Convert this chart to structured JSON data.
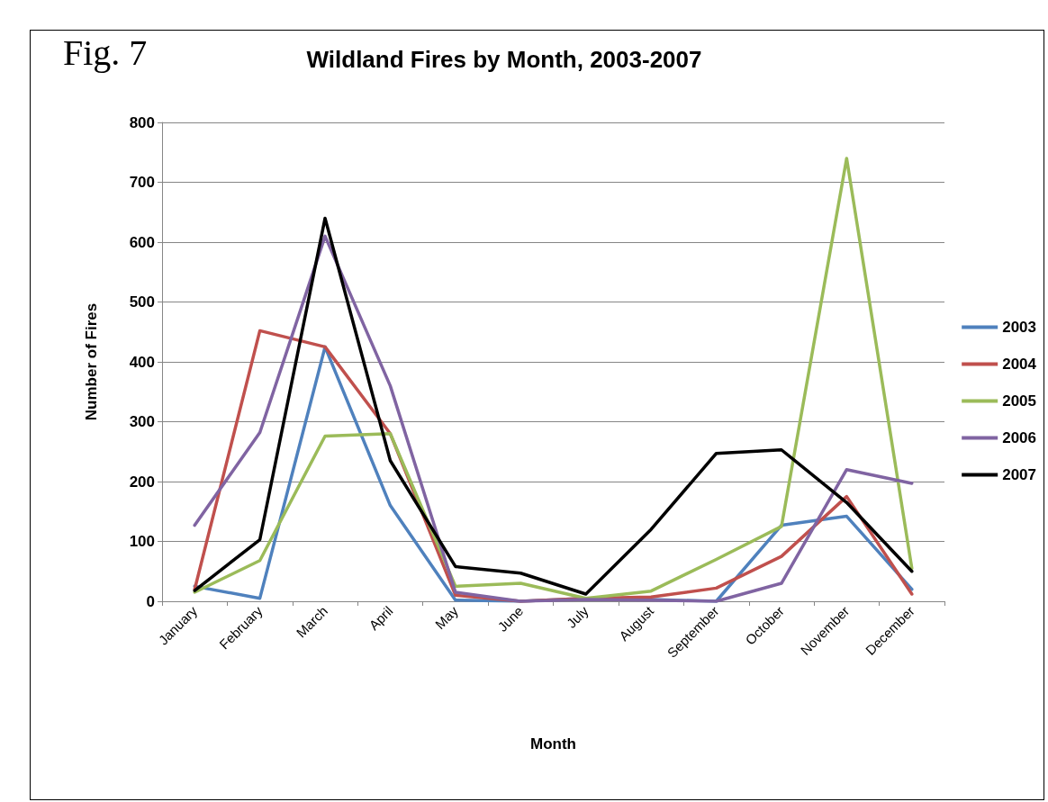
{
  "chart_data": {
    "type": "line",
    "title": "Wildland Fires by Month, 2003-2007",
    "xlabel": "Month",
    "ylabel": "Number of Fires",
    "annotations": [
      "Fig. 7"
    ],
    "categories": [
      "January",
      "February",
      "March",
      "April",
      "May",
      "June",
      "July",
      "August",
      "September",
      "October",
      "November",
      "December"
    ],
    "series": [
      {
        "name": "2003",
        "color": "#4f81bd",
        "values": [
          25,
          5,
          425,
          160,
          2,
          0,
          5,
          3,
          0,
          127,
          142,
          20
        ]
      },
      {
        "name": "2004",
        "color": "#c0504d",
        "values": [
          20,
          452,
          425,
          280,
          10,
          0,
          5,
          7,
          22,
          75,
          175,
          12
        ]
      },
      {
        "name": "2005",
        "color": "#9bbb59",
        "values": [
          15,
          68,
          276,
          280,
          25,
          30,
          5,
          17,
          70,
          125,
          740,
          55
        ]
      },
      {
        "name": "2006",
        "color": "#8064a2",
        "values": [
          127,
          282,
          610,
          360,
          15,
          0,
          3,
          2,
          0,
          30,
          220,
          197
        ]
      },
      {
        "name": "2007",
        "color": "#000000",
        "values": [
          18,
          103,
          640,
          235,
          58,
          47,
          12,
          120,
          247,
          253,
          165,
          50
        ]
      }
    ],
    "ylim": [
      0,
      800
    ],
    "yticks": [
      0,
      100,
      200,
      300,
      400,
      500,
      600,
      700,
      800
    ],
    "grid": "y",
    "legend": "right",
    "marker": "none",
    "line_style": "solid"
  }
}
